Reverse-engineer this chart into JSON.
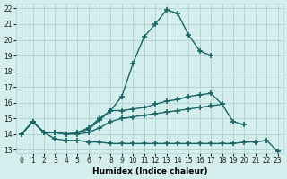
{
  "xlabel": "Humidex (Indice chaleur)",
  "xlim": [
    -0.5,
    23.5
  ],
  "ylim": [
    12.8,
    22.3
  ],
  "yticks": [
    13,
    14,
    15,
    16,
    17,
    18,
    19,
    20,
    21,
    22
  ],
  "xticks": [
    0,
    1,
    2,
    3,
    4,
    5,
    6,
    7,
    8,
    9,
    10,
    11,
    12,
    13,
    14,
    15,
    16,
    17,
    18,
    19,
    20,
    21,
    22,
    23
  ],
  "background_color": "#d4eded",
  "grid_color": "#b0d0d0",
  "line_color": "#1a6666",
  "line_width": 1.0,
  "marker": "+",
  "marker_size": 4,
  "marker_edge_width": 1.2,
  "curves": [
    {
      "x": [
        0,
        1,
        2,
        3,
        4,
        5,
        6,
        7,
        8,
        9,
        10,
        11,
        12,
        13,
        14,
        15,
        16,
        17,
        18,
        19,
        20,
        21,
        22,
        23
      ],
      "y": [
        14.0,
        14.8,
        14.1,
        13.7,
        13.6,
        13.6,
        13.5,
        13.5,
        13.4,
        13.4,
        13.4,
        13.4,
        13.4,
        13.4,
        13.4,
        13.4,
        13.4,
        13.4,
        13.4,
        13.4,
        13.5,
        13.5,
        13.6,
        12.9
      ]
    },
    {
      "x": [
        0,
        1,
        2,
        3,
        4,
        5,
        6,
        7,
        8,
        9,
        10,
        11,
        12,
        13,
        14,
        15,
        16,
        17,
        18,
        19,
        20,
        21,
        22,
        23
      ],
      "y": [
        14.0,
        14.8,
        14.1,
        14.1,
        14.0,
        14.0,
        14.1,
        14.4,
        14.8,
        15.0,
        15.1,
        15.2,
        15.3,
        15.4,
        15.5,
        15.6,
        15.7,
        15.8,
        15.9,
        14.8,
        14.6,
        null,
        null,
        null
      ]
    },
    {
      "x": [
        0,
        1,
        2,
        3,
        4,
        5,
        6,
        7,
        8,
        9,
        10,
        11,
        12,
        13,
        14,
        15,
        16,
        17,
        18,
        19,
        20,
        21,
        22,
        23
      ],
      "y": [
        14.0,
        14.8,
        14.1,
        14.1,
        14.0,
        14.1,
        14.4,
        15.0,
        15.5,
        15.5,
        15.6,
        15.7,
        15.9,
        16.1,
        16.2,
        16.4,
        16.5,
        16.6,
        15.9,
        null,
        null,
        null,
        null,
        null
      ]
    },
    {
      "x": [
        0,
        1,
        2,
        3,
        4,
        5,
        6,
        7,
        8,
        9,
        10,
        11,
        12,
        13,
        14,
        15,
        16,
        17,
        18,
        19,
        20,
        21,
        22,
        23
      ],
      "y": [
        14.0,
        14.8,
        14.1,
        14.1,
        14.0,
        14.1,
        14.3,
        14.9,
        15.5,
        16.4,
        18.5,
        20.2,
        21.0,
        21.9,
        21.7,
        20.3,
        19.3,
        19.0,
        null,
        null,
        null,
        null,
        null,
        null
      ]
    }
  ]
}
